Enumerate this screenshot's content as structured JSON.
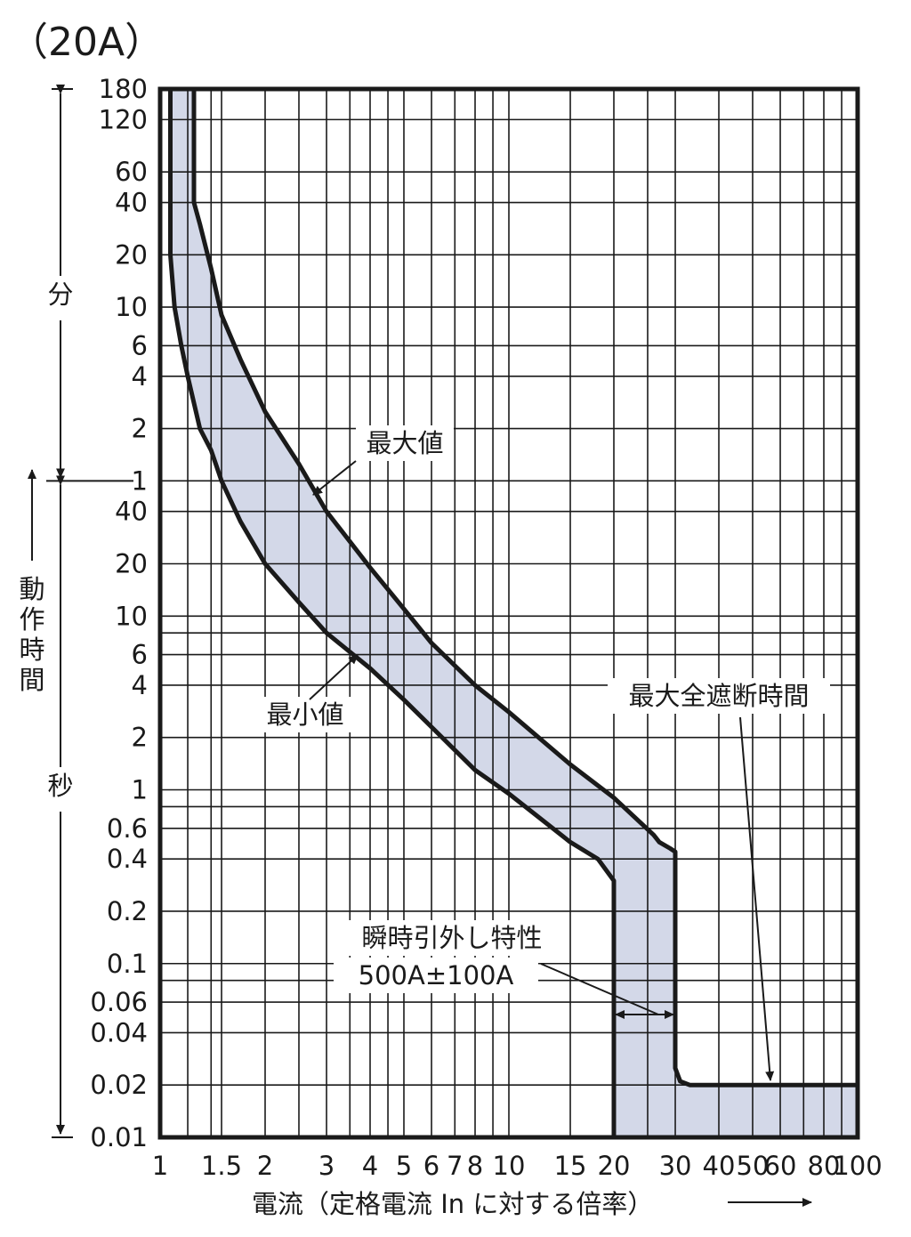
{
  "title": "（20A）",
  "chart_data": {
    "type": "line",
    "title": "（20A）",
    "xlabel": "電流（定格電流 In に対する倍率）",
    "xscale": "log",
    "xlim": [
      1,
      100
    ],
    "x_tick_labels": [
      {
        "v": 1,
        "t": "1"
      },
      {
        "v": 1.5,
        "t": "1.5"
      },
      {
        "v": 2,
        "t": "2"
      },
      {
        "v": 3,
        "t": "3"
      },
      {
        "v": 4,
        "t": "4"
      },
      {
        "v": 5,
        "t": "5"
      },
      {
        "v": 6,
        "t": "6"
      },
      {
        "v": 7,
        "t": "7"
      },
      {
        "v": 8,
        "t": "8"
      },
      {
        "v": 10,
        "t": "10"
      },
      {
        "v": 15,
        "t": "15"
      },
      {
        "v": 20,
        "t": "20"
      },
      {
        "v": 30,
        "t": "30"
      },
      {
        "v": 40,
        "t": "40"
      },
      {
        "v": 50,
        "t": "50"
      },
      {
        "v": 60,
        "t": "60"
      },
      {
        "v": 80,
        "t": "80"
      },
      {
        "v": 100,
        "t": "100"
      }
    ],
    "x_grid": [
      1,
      1.2,
      1.4,
      1.5,
      2,
      2.5,
      3,
      3.5,
      4,
      4.5,
      5,
      6,
      7,
      8,
      9,
      10,
      15,
      20,
      25,
      30,
      40,
      50,
      60,
      70,
      80,
      90,
      100
    ],
    "ylabel": "動作時間",
    "yscale": "log",
    "ylim_seconds": [
      0.01,
      10800
    ],
    "y_units": {
      "minutes": "分",
      "seconds": "秒"
    },
    "y_ticks_minutes": [
      {
        "v": 180,
        "t": "180"
      },
      {
        "v": 120,
        "t": "120"
      },
      {
        "v": 60,
        "t": "60"
      },
      {
        "v": 40,
        "t": "40"
      },
      {
        "v": 20,
        "t": "20"
      },
      {
        "v": 10,
        "t": "10"
      },
      {
        "v": 6,
        "t": "6"
      },
      {
        "v": 4,
        "t": "4"
      },
      {
        "v": 2,
        "t": "2"
      },
      {
        "v": 1,
        "t": "1"
      }
    ],
    "y_ticks_seconds": [
      {
        "v": 40,
        "t": "40"
      },
      {
        "v": 20,
        "t": "20"
      },
      {
        "v": 10,
        "t": "10"
      },
      {
        "v": 6,
        "t": "6"
      },
      {
        "v": 4,
        "t": "4"
      },
      {
        "v": 2,
        "t": "2"
      },
      {
        "v": 1,
        "t": "1"
      },
      {
        "v": 0.6,
        "t": "0.6"
      },
      {
        "v": 0.4,
        "t": "0.4"
      },
      {
        "v": 0.2,
        "t": "0.2"
      },
      {
        "v": 0.1,
        "t": "0.1"
      },
      {
        "v": 0.06,
        "t": "0.06"
      },
      {
        "v": 0.04,
        "t": "0.04"
      },
      {
        "v": 0.02,
        "t": "0.02"
      },
      {
        "v": 0.01,
        "t": "0.01"
      }
    ],
    "y_grid_seconds": [
      10800,
      7200,
      3600,
      2400,
      1200,
      600,
      360,
      240,
      120,
      60,
      40,
      20,
      10,
      8,
      6,
      4,
      2,
      1,
      0.8,
      0.6,
      0.4,
      0.2,
      0.1,
      0.08,
      0.06,
      0.04,
      0.02,
      0.01
    ],
    "series": [
      {
        "name": "最大値",
        "points": [
          [
            1.25,
            10800
          ],
          [
            1.25,
            2400
          ],
          [
            1.3,
            1800
          ],
          [
            1.4,
            1000
          ],
          [
            1.5,
            540
          ],
          [
            1.7,
            300
          ],
          [
            2,
            150
          ],
          [
            2.5,
            75
          ],
          [
            3,
            40
          ],
          [
            4,
            19
          ],
          [
            5,
            11
          ],
          [
            6,
            7
          ],
          [
            8,
            4
          ],
          [
            10,
            2.8
          ],
          [
            15,
            1.4
          ],
          [
            20,
            0.9
          ],
          [
            26,
            0.55
          ],
          [
            27,
            0.5
          ],
          [
            29,
            0.46
          ],
          [
            30,
            0.44
          ],
          [
            30,
            0.06
          ],
          [
            30,
            0.025
          ],
          [
            31,
            0.021
          ],
          [
            33,
            0.02
          ],
          [
            100,
            0.02
          ]
        ]
      },
      {
        "name": "最小値",
        "points": [
          [
            1.07,
            10800
          ],
          [
            1.07,
            1200
          ],
          [
            1.1,
            600
          ],
          [
            1.15,
            360
          ],
          [
            1.2,
            240
          ],
          [
            1.3,
            120
          ],
          [
            1.4,
            90
          ],
          [
            1.5,
            60
          ],
          [
            1.7,
            35
          ],
          [
            2,
            20
          ],
          [
            2.5,
            12
          ],
          [
            3,
            8
          ],
          [
            4,
            5
          ],
          [
            5,
            3.3
          ],
          [
            6,
            2.3
          ],
          [
            8,
            1.3
          ],
          [
            10,
            0.95
          ],
          [
            15,
            0.5
          ],
          [
            18,
            0.4
          ],
          [
            20,
            0.3
          ],
          [
            20,
            0.01
          ]
        ]
      }
    ],
    "band_fill": "#d3d8e8",
    "line_color": "#1a1a1a",
    "annotations": {
      "max": "最大値",
      "min": "最小値",
      "max_interrupt": "最大全遮断時間",
      "instant_line1": "瞬時引外し特性",
      "instant_line2": "500A±100A"
    }
  }
}
